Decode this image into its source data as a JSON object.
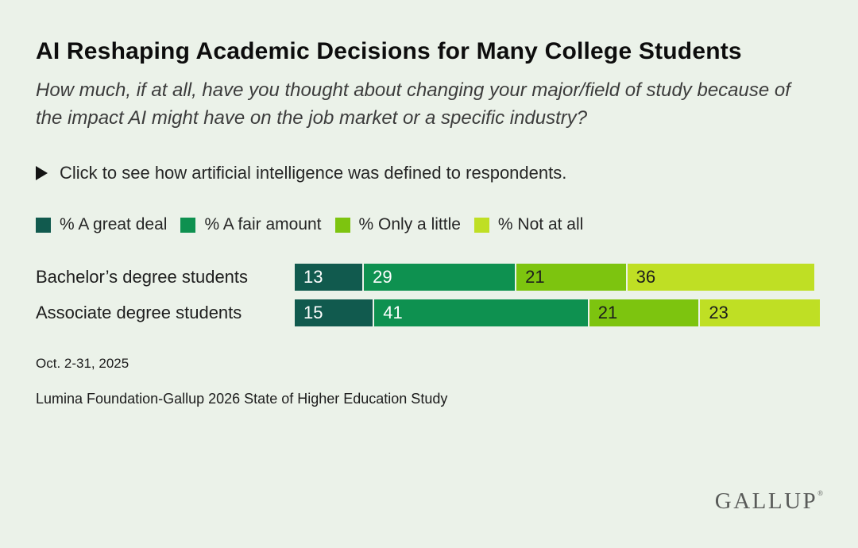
{
  "page": {
    "background_color": "#ebf2e9"
  },
  "header": {
    "title": "AI Reshaping Academic Decisions for Many College Students",
    "subtitle": "How much, if at all, have you thought about changing your major/field of study because of the impact AI might have on the job market or a specific industry?"
  },
  "disclosure": {
    "icon": "play-triangle-icon",
    "label": "Click to see how artificial intelligence was defined to respondents."
  },
  "chart_data": {
    "type": "bar",
    "orientation": "horizontal",
    "stacked": true,
    "value_unit": "%",
    "xlim": [
      0,
      100
    ],
    "data_labels": true,
    "legend_position": "top",
    "categories": [
      "Bachelor’s degree students",
      "Associate degree students"
    ],
    "series": [
      {
        "name": "% A great deal",
        "color": "#115a4e",
        "label_color": "#ffffff",
        "values": [
          13,
          15
        ]
      },
      {
        "name": "% A fair amount",
        "color": "#0e9150",
        "label_color": "#ffffff",
        "values": [
          29,
          41
        ]
      },
      {
        "name": "% Only a little",
        "color": "#7dc40f",
        "label_color": "#1d1d1d",
        "values": [
          21,
          21
        ]
      },
      {
        "name": "% Not at all",
        "color": "#bfdf24",
        "label_color": "#1d1d1d",
        "values": [
          36,
          23
        ]
      }
    ]
  },
  "footer": {
    "date_range": "Oct. 2-31, 2025",
    "source": "Lumina Foundation-Gallup 2026 State of Higher Education Study",
    "logo_text": "GALLUP",
    "registered_mark": "®"
  }
}
